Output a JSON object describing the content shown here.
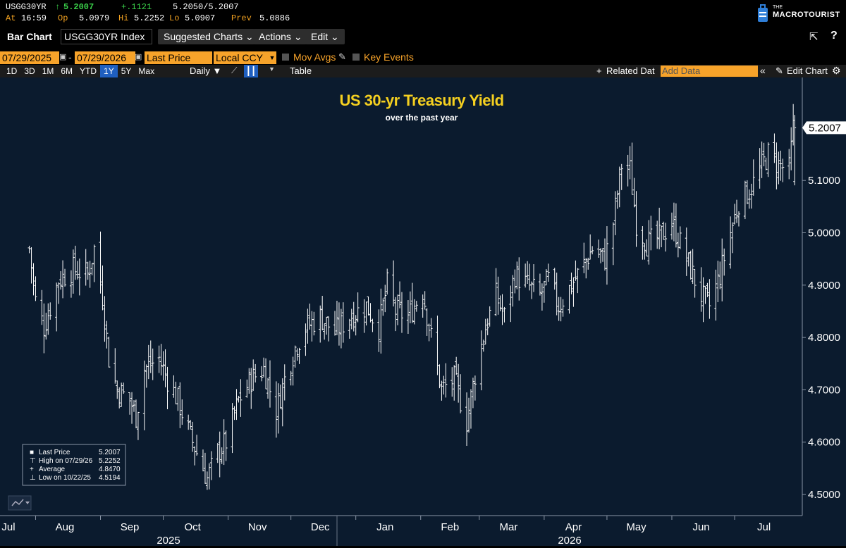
{
  "ticker": {
    "symbol": "USGG30YR",
    "arrow": "↑",
    "last": "5.2007",
    "change": "+.1121",
    "bid_ask": "5.2050/5.2007",
    "at_label": "At",
    "time": "16:59",
    "op_label": "Op",
    "open": "5.0979",
    "hi_label": "Hi",
    "high": "5.2252",
    "lo_label": "Lo",
    "low": "5.0907",
    "prev_label": "Prev",
    "prev": "5.0886",
    "logo_small": "THE",
    "logo_main": "MACROTOURIST"
  },
  "toolbar": {
    "chart_type": "Bar Chart",
    "security": "USGG30YR Index",
    "suggested": "Suggested Charts",
    "actions": "Actions",
    "edit": "Edit"
  },
  "range": {
    "start": "07/29/2025",
    "end": "07/29/2026",
    "field": "Last Price",
    "currency": "Local CCY",
    "mov_avgs": "Mov Avgs",
    "key_events": "Key Events"
  },
  "periods": [
    "1D",
    "3D",
    "1M",
    "6M",
    "YTD",
    "1Y",
    "5Y",
    "Max"
  ],
  "selected_period": "1Y",
  "row4": {
    "frequency": "Daily",
    "table": "Table",
    "related": "Related Dat",
    "add_data": "Add Data",
    "edit_chart": "Edit Chart"
  },
  "colors": {
    "background": "#0b1b2e",
    "bars": "#ffffff",
    "title": "#f5d020",
    "accent_orange": "#f7a32a",
    "up_green": "#3ad14a",
    "selected_blue": "#1f5fc0"
  },
  "chart_data": {
    "type": "bar",
    "style": "ohlc",
    "title": "US 30-yr Treasury Yield",
    "subtitle": "over the past year",
    "ylim": [
      4.45,
      5.3
    ],
    "yticks": [
      "4.5000",
      "4.6000",
      "4.7000",
      "4.8000",
      "4.9000",
      "5.0000",
      "5.1000"
    ],
    "last_value_label": "5.2007",
    "x_months": [
      "Jul",
      "Aug",
      "Sep",
      "Oct",
      "Nov",
      "Dec",
      "Jan",
      "Feb",
      "Mar",
      "Apr",
      "May",
      "Jun",
      "Jul"
    ],
    "x_years": [
      "2025",
      "2026"
    ],
    "grid": false,
    "legend_position": "bottom-left",
    "legend": [
      {
        "label": "Last Price",
        "value": "5.2007"
      },
      {
        "label": "High on 07/29/26",
        "value": "5.2252"
      },
      {
        "label": "Average",
        "value": "4.8470"
      },
      {
        "label": "Low on 10/22/25",
        "value": "4.5194"
      }
    ],
    "keypoints": [
      [
        "2025-07-29",
        4.97
      ],
      [
        "2025-08-01",
        4.87
      ],
      [
        "2025-08-05",
        4.82
      ],
      [
        "2025-08-12",
        4.91
      ],
      [
        "2025-08-19",
        4.93
      ],
      [
        "2025-08-26",
        4.92
      ],
      [
        "2025-08-29",
        4.97
      ],
      [
        "2025-09-02",
        4.88
      ],
      [
        "2025-09-05",
        4.76
      ],
      [
        "2025-09-09",
        4.7
      ],
      [
        "2025-09-15",
        4.68
      ],
      [
        "2025-09-18",
        4.65
      ],
      [
        "2025-09-22",
        4.74
      ],
      [
        "2025-09-29",
        4.76
      ],
      [
        "2025-10-03",
        4.72
      ],
      [
        "2025-10-08",
        4.68
      ],
      [
        "2025-10-14",
        4.61
      ],
      [
        "2025-10-18",
        4.57
      ],
      [
        "2025-10-22",
        4.53
      ],
      [
        "2025-10-27",
        4.58
      ],
      [
        "2025-10-31",
        4.6
      ],
      [
        "2025-11-06",
        4.68
      ],
      [
        "2025-11-12",
        4.72
      ],
      [
        "2025-11-18",
        4.74
      ],
      [
        "2025-11-24",
        4.66
      ],
      [
        "2025-11-28",
        4.72
      ],
      [
        "2025-12-03",
        4.78
      ],
      [
        "2025-12-08",
        4.82
      ],
      [
        "2025-12-15",
        4.84
      ],
      [
        "2025-12-22",
        4.81
      ],
      [
        "2025-12-29",
        4.84
      ],
      [
        "2026-01-06",
        4.86
      ],
      [
        "2026-01-12",
        4.82
      ],
      [
        "2026-01-16",
        4.9
      ],
      [
        "2026-01-20",
        4.85
      ],
      [
        "2026-01-26",
        4.84
      ],
      [
        "2026-02-02",
        4.89
      ],
      [
        "2026-02-06",
        4.8
      ],
      [
        "2026-02-11",
        4.7
      ],
      [
        "2026-02-17",
        4.72
      ],
      [
        "2026-02-23",
        4.64
      ],
      [
        "2026-02-27",
        4.73
      ],
      [
        "2026-03-04",
        4.82
      ],
      [
        "2026-03-09",
        4.88
      ],
      [
        "2026-03-13",
        4.84
      ],
      [
        "2026-03-18",
        4.92
      ],
      [
        "2026-03-24",
        4.9
      ],
      [
        "2026-03-30",
        4.88
      ],
      [
        "2026-04-03",
        4.91
      ],
      [
        "2026-04-08",
        4.86
      ],
      [
        "2026-04-14",
        4.9
      ],
      [
        "2026-04-20",
        4.94
      ],
      [
        "2026-04-24",
        4.97
      ],
      [
        "2026-04-30",
        4.95
      ],
      [
        "2026-05-04",
        5.02
      ],
      [
        "2026-05-08",
        5.13
      ],
      [
        "2026-05-12",
        5.12
      ],
      [
        "2026-05-15",
        5.02
      ],
      [
        "2026-05-20",
        4.98
      ],
      [
        "2026-05-26",
        4.99
      ],
      [
        "2026-06-01",
        5.02
      ],
      [
        "2026-06-05",
        4.98
      ],
      [
        "2026-06-10",
        4.93
      ],
      [
        "2026-06-15",
        4.88
      ],
      [
        "2026-06-19",
        4.86
      ],
      [
        "2026-06-24",
        4.92
      ],
      [
        "2026-06-29",
        5.0
      ],
      [
        "2026-07-03",
        5.06
      ],
      [
        "2026-07-08",
        5.08
      ],
      [
        "2026-07-13",
        5.12
      ],
      [
        "2026-07-17",
        5.15
      ],
      [
        "2026-07-22",
        5.13
      ],
      [
        "2026-07-27",
        5.12
      ],
      [
        "2026-07-29",
        5.2
      ]
    ]
  }
}
